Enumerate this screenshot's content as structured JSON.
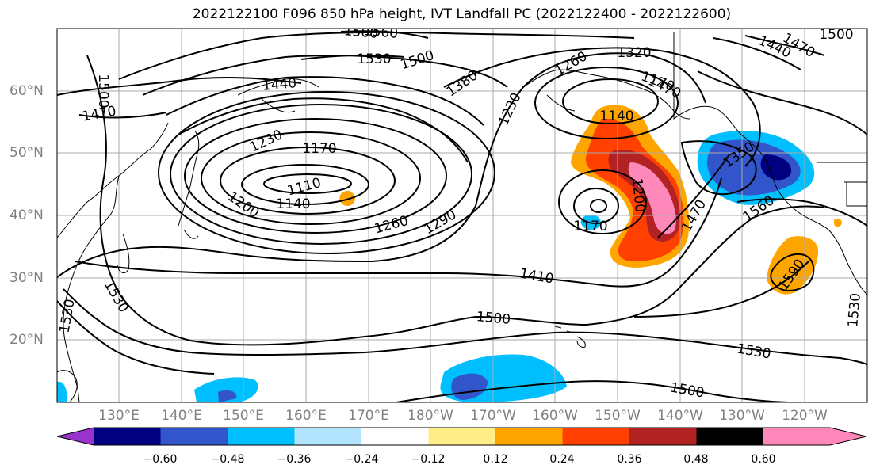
{
  "title": "2022122100 F096 850 hPa height, IVT Landfall PC (2022122400 - 2022122600)",
  "lat_labels": [
    "60°N",
    "50°N",
    "40°N",
    "30°N",
    "20°N"
  ],
  "lon_labels": [
    "130°E",
    "140°E",
    "150°E",
    "160°E",
    "170°E",
    "180°W",
    "170°W",
    "160°W",
    "150°W",
    "140°W",
    "130°W",
    "120°W"
  ],
  "colorbar": {
    "colors": [
      "#9933cc",
      "#000080",
      "#3355cc",
      "#00bfff",
      "#b3e5ff",
      "#ffffff",
      "#ffee88",
      "#ffa500",
      "#ff4000",
      "#b22222",
      "#ff88bb"
    ],
    "tick_labels": [
      "−0.60",
      "−0.48",
      "−0.36",
      "−0.24",
      "−0.12",
      "0.12",
      "0.24",
      "0.36",
      "0.48",
      "0.60"
    ]
  },
  "contour_labels": [
    "1560",
    "1530",
    "1500",
    "1440",
    "1470",
    "1500",
    "1530",
    "1440",
    "1470",
    "1500",
    "1470",
    "1380",
    "1260",
    "1320",
    "1170",
    "1230",
    "1140",
    "1230",
    "1170",
    "1110",
    "1140",
    "1200",
    "1200",
    "1350",
    "1260",
    "1290",
    "1170",
    "1470",
    "1560",
    "1410",
    "1590",
    "1500",
    "1530",
    "1530",
    "1530",
    "1500",
    "1500"
  ]
}
